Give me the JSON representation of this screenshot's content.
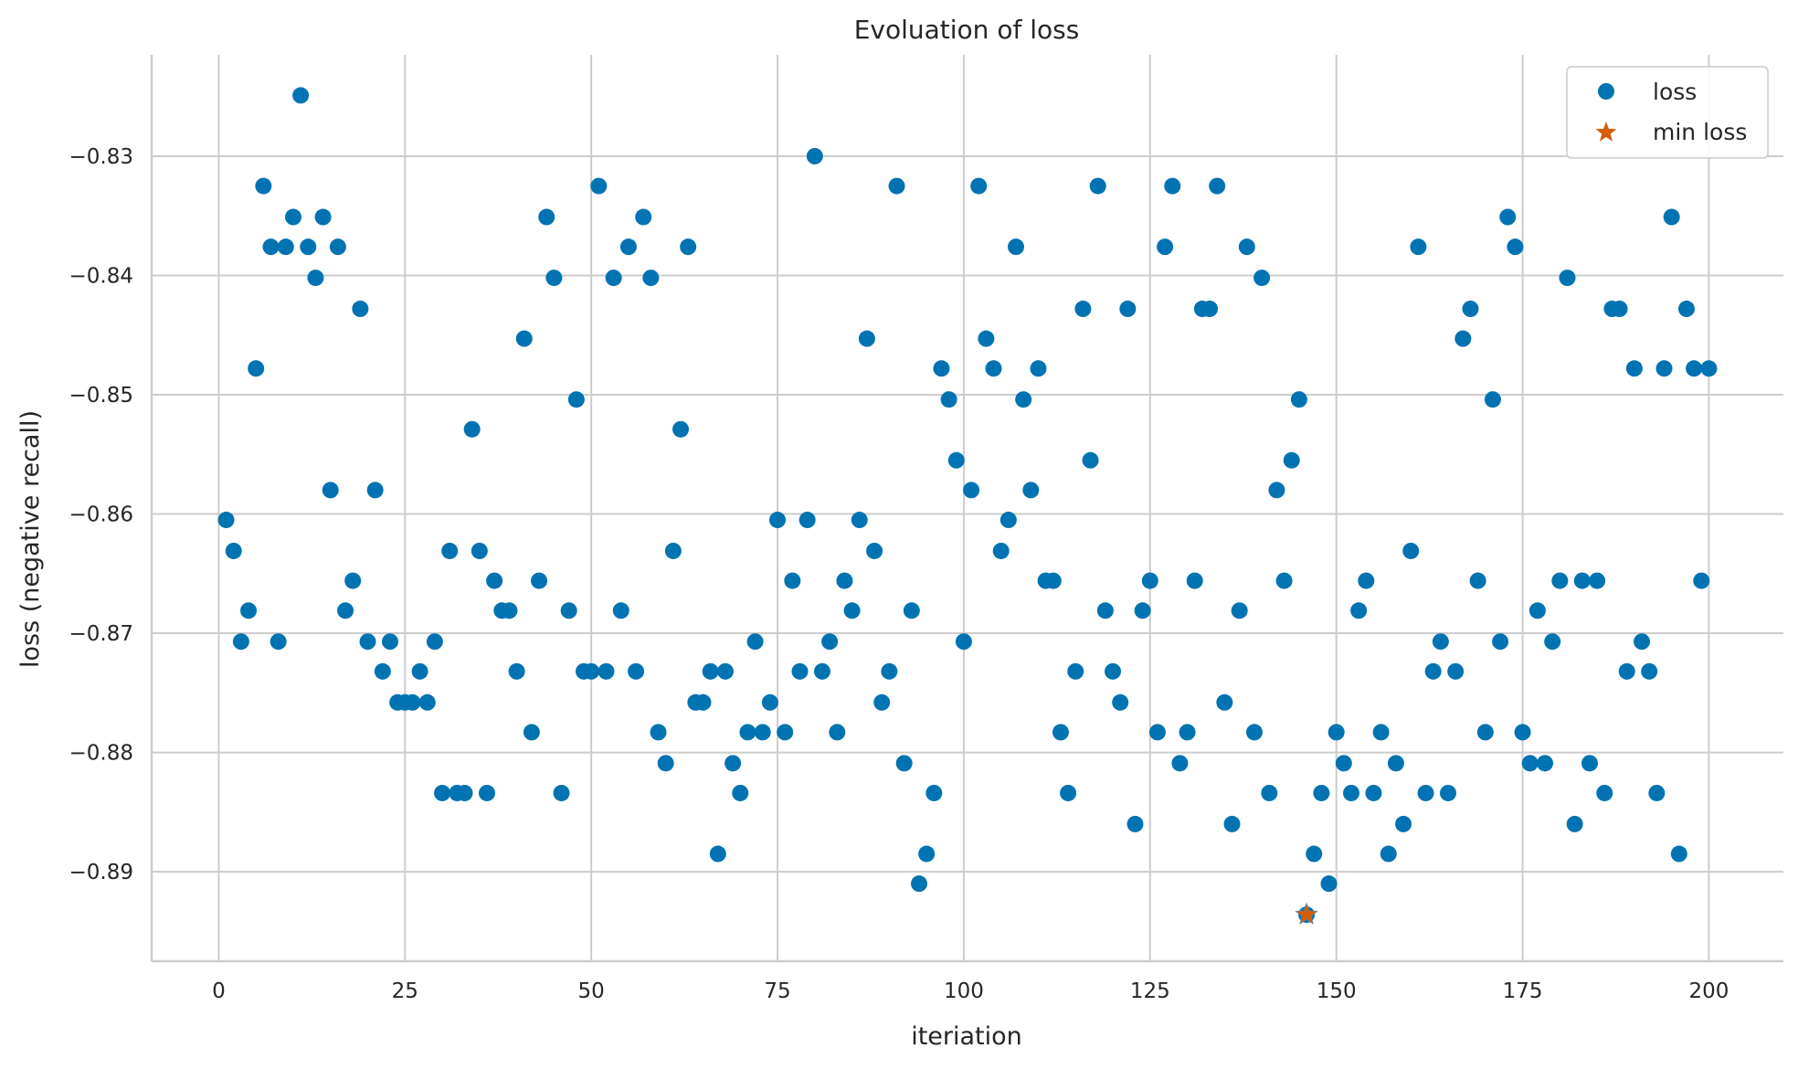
{
  "chart_data": {
    "type": "scatter",
    "title": "Evoluation of loss",
    "xlabel": "iteriation",
    "ylabel": "loss (negative recall)",
    "xlim": [
      -9,
      210
    ],
    "ylim": [
      -0.8975,
      -0.8215
    ],
    "xticks": [
      0,
      25,
      50,
      75,
      100,
      125,
      150,
      175,
      200
    ],
    "xtick_labels": [
      "0",
      "25",
      "50",
      "75",
      "100",
      "125",
      "150",
      "175",
      "200"
    ],
    "yticks": [
      -0.83,
      -0.84,
      -0.85,
      -0.86,
      -0.87,
      -0.88,
      -0.89
    ],
    "ytick_labels": [
      "−0.83",
      "−0.84",
      "−0.85",
      "−0.86",
      "−0.87",
      "−0.88",
      "−0.89"
    ],
    "grid": true,
    "legend": "top-right",
    "series": [
      {
        "name": "loss",
        "marker": "circle",
        "color": "#0173b2",
        "x": [
          1,
          2,
          3,
          4,
          5,
          6,
          7,
          8,
          9,
          10,
          11,
          12,
          13,
          14,
          15,
          16,
          17,
          18,
          19,
          20,
          21,
          22,
          23,
          24,
          25,
          26,
          27,
          28,
          29,
          30,
          31,
          32,
          33,
          34,
          35,
          36,
          37,
          38,
          39,
          40,
          41,
          42,
          43,
          44,
          45,
          46,
          47,
          48,
          49,
          50,
          51,
          52,
          53,
          54,
          55,
          56,
          57,
          58,
          59,
          60,
          61,
          62,
          63,
          64,
          65,
          66,
          67,
          68,
          69,
          70,
          71,
          72,
          73,
          74,
          75,
          76,
          77,
          78,
          79,
          80,
          81,
          82,
          83,
          84,
          85,
          86,
          87,
          88,
          89,
          90,
          91,
          92,
          93,
          94,
          95,
          96,
          97,
          98,
          99,
          100,
          101,
          102,
          103,
          104,
          105,
          106,
          107,
          108,
          109,
          110,
          111,
          112,
          113,
          114,
          115,
          116,
          117,
          118,
          119,
          120,
          121,
          122,
          123,
          124,
          125,
          126,
          127,
          128,
          129,
          130,
          131,
          132,
          133,
          134,
          135,
          136,
          137,
          138,
          139,
          140,
          141,
          142,
          143,
          144,
          145,
          146,
          147,
          148,
          149,
          150,
          151,
          152,
          153,
          154,
          155,
          156,
          157,
          158,
          159,
          160,
          161,
          162,
          163,
          164,
          165,
          166,
          167,
          168,
          169,
          170,
          171,
          172,
          173,
          174,
          175,
          176,
          177,
          178,
          179,
          180,
          181,
          182,
          183,
          184,
          185,
          186,
          187,
          188,
          189,
          190,
          191,
          192,
          193,
          194,
          195,
          196,
          197,
          198,
          199,
          200
        ],
        "y": [
          -0.8605,
          -0.8631,
          -0.8707,
          -0.8681,
          -0.8478,
          -0.8325,
          -0.8376,
          -0.8707,
          -0.8376,
          -0.8351,
          -0.8249,
          -0.8376,
          -0.8402,
          -0.8351,
          -0.858,
          -0.8376,
          -0.8681,
          -0.8656,
          -0.8428,
          -0.8707,
          -0.858,
          -0.8732,
          -0.8707,
          -0.8758,
          -0.8758,
          -0.8758,
          -0.8732,
          -0.8758,
          -0.8707,
          -0.8834,
          -0.8631,
          -0.8834,
          -0.8834,
          -0.8529,
          -0.8631,
          -0.8834,
          -0.8656,
          -0.8681,
          -0.8681,
          -0.8732,
          -0.8453,
          -0.8783,
          -0.8656,
          -0.8351,
          -0.8402,
          -0.8834,
          -0.8681,
          -0.8504,
          -0.8732,
          -0.8732,
          -0.8325,
          -0.8732,
          -0.8402,
          -0.8681,
          -0.8376,
          -0.8732,
          -0.8351,
          -0.8402,
          -0.8783,
          -0.8809,
          -0.8631,
          -0.8529,
          -0.8376,
          -0.8758,
          -0.8758,
          -0.8732,
          -0.8885,
          -0.8732,
          -0.8809,
          -0.8834,
          -0.8783,
          -0.8707,
          -0.8783,
          -0.8758,
          -0.8605,
          -0.8783,
          -0.8656,
          -0.8732,
          -0.8605,
          -0.83,
          -0.8732,
          -0.8707,
          -0.8783,
          -0.8656,
          -0.8681,
          -0.8605,
          -0.8453,
          -0.8631,
          -0.8758,
          -0.8732,
          -0.8325,
          -0.8809,
          -0.8681,
          -0.891,
          -0.8885,
          -0.8834,
          -0.8478,
          -0.8504,
          -0.8555,
          -0.8707,
          -0.858,
          -0.8325,
          -0.8453,
          -0.8478,
          -0.8631,
          -0.8605,
          -0.8376,
          -0.8504,
          -0.858,
          -0.8478,
          -0.8656,
          -0.8656,
          -0.8783,
          -0.8834,
          -0.8732,
          -0.8428,
          -0.8555,
          -0.8325,
          -0.8681,
          -0.8732,
          -0.8758,
          -0.8428,
          -0.886,
          -0.8681,
          -0.8656,
          -0.8783,
          -0.8376,
          -0.8325,
          -0.8809,
          -0.8783,
          -0.8656,
          -0.8428,
          -0.8428,
          -0.8325,
          -0.8758,
          -0.886,
          -0.8681,
          -0.8376,
          -0.8783,
          -0.8402,
          -0.8834,
          -0.858,
          -0.8656,
          -0.8555,
          -0.8504,
          -0.8936,
          -0.8885,
          -0.8834,
          -0.891,
          -0.8783,
          -0.8809,
          -0.8834,
          -0.8681,
          -0.8656,
          -0.8834,
          -0.8783,
          -0.8885,
          -0.8809,
          -0.886,
          -0.8631,
          -0.8376,
          -0.8834,
          -0.8732,
          -0.8707,
          -0.8834,
          -0.8732,
          -0.8453,
          -0.8428,
          -0.8656,
          -0.8783,
          -0.8504,
          -0.8707,
          -0.8351,
          -0.8376,
          -0.8783,
          -0.8809,
          -0.8681,
          -0.8809,
          -0.8707,
          -0.8656,
          -0.8402,
          -0.886,
          -0.8656,
          -0.8809,
          -0.8656,
          -0.8834,
          -0.8428,
          -0.8428,
          -0.8732,
          -0.8478,
          -0.8707,
          -0.8732,
          -0.8834,
          -0.8478,
          -0.8351,
          -0.8885,
          -0.8428,
          -0.8478,
          -0.8656,
          -0.8478
        ]
      },
      {
        "name": "min loss",
        "marker": "star",
        "color": "#d55e00",
        "x": [
          146
        ],
        "y": [
          -0.8936
        ]
      }
    ]
  }
}
